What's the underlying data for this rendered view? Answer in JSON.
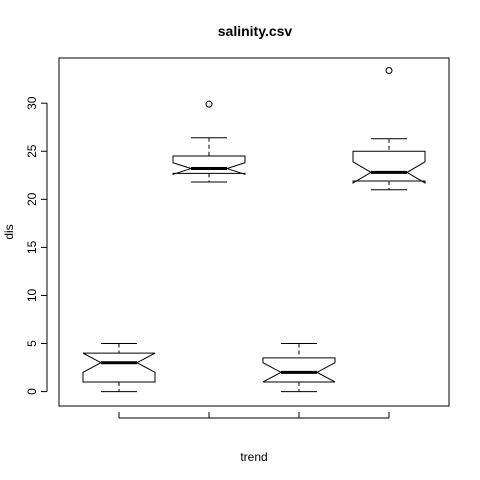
{
  "chart_data": {
    "type": "boxplot",
    "title": "salinity.csv",
    "xlabel": "trend",
    "ylabel": "dis",
    "ylim": [
      -1.5,
      34.7
    ],
    "yticks": [
      0,
      5,
      10,
      15,
      20,
      25,
      30
    ],
    "grid": false,
    "legend": "none",
    "notched": true,
    "boxes": [
      {
        "q1": 1.0,
        "median": 3.0,
        "q3": 4.0,
        "whisker_low": 0.0,
        "whisker_high": 5.0,
        "notch_low": 2.0,
        "notch_high": 4.0,
        "outliers": []
      },
      {
        "q1": 22.7,
        "median": 23.2,
        "q3": 24.5,
        "whisker_low": 21.8,
        "whisker_high": 26.4,
        "notch_low": 22.6,
        "notch_high": 23.8,
        "outliers": [
          29.9
        ]
      },
      {
        "q1": 1.0,
        "median": 2.0,
        "q3": 3.5,
        "whisker_low": 0.0,
        "whisker_high": 5.0,
        "notch_low": 1.0,
        "notch_high": 3.0,
        "outliers": []
      },
      {
        "q1": 21.9,
        "median": 22.8,
        "q3": 25.0,
        "whisker_low": 21.0,
        "whisker_high": 26.3,
        "notch_low": 21.7,
        "notch_high": 23.9,
        "outliers": [
          33.4
        ]
      }
    ]
  }
}
